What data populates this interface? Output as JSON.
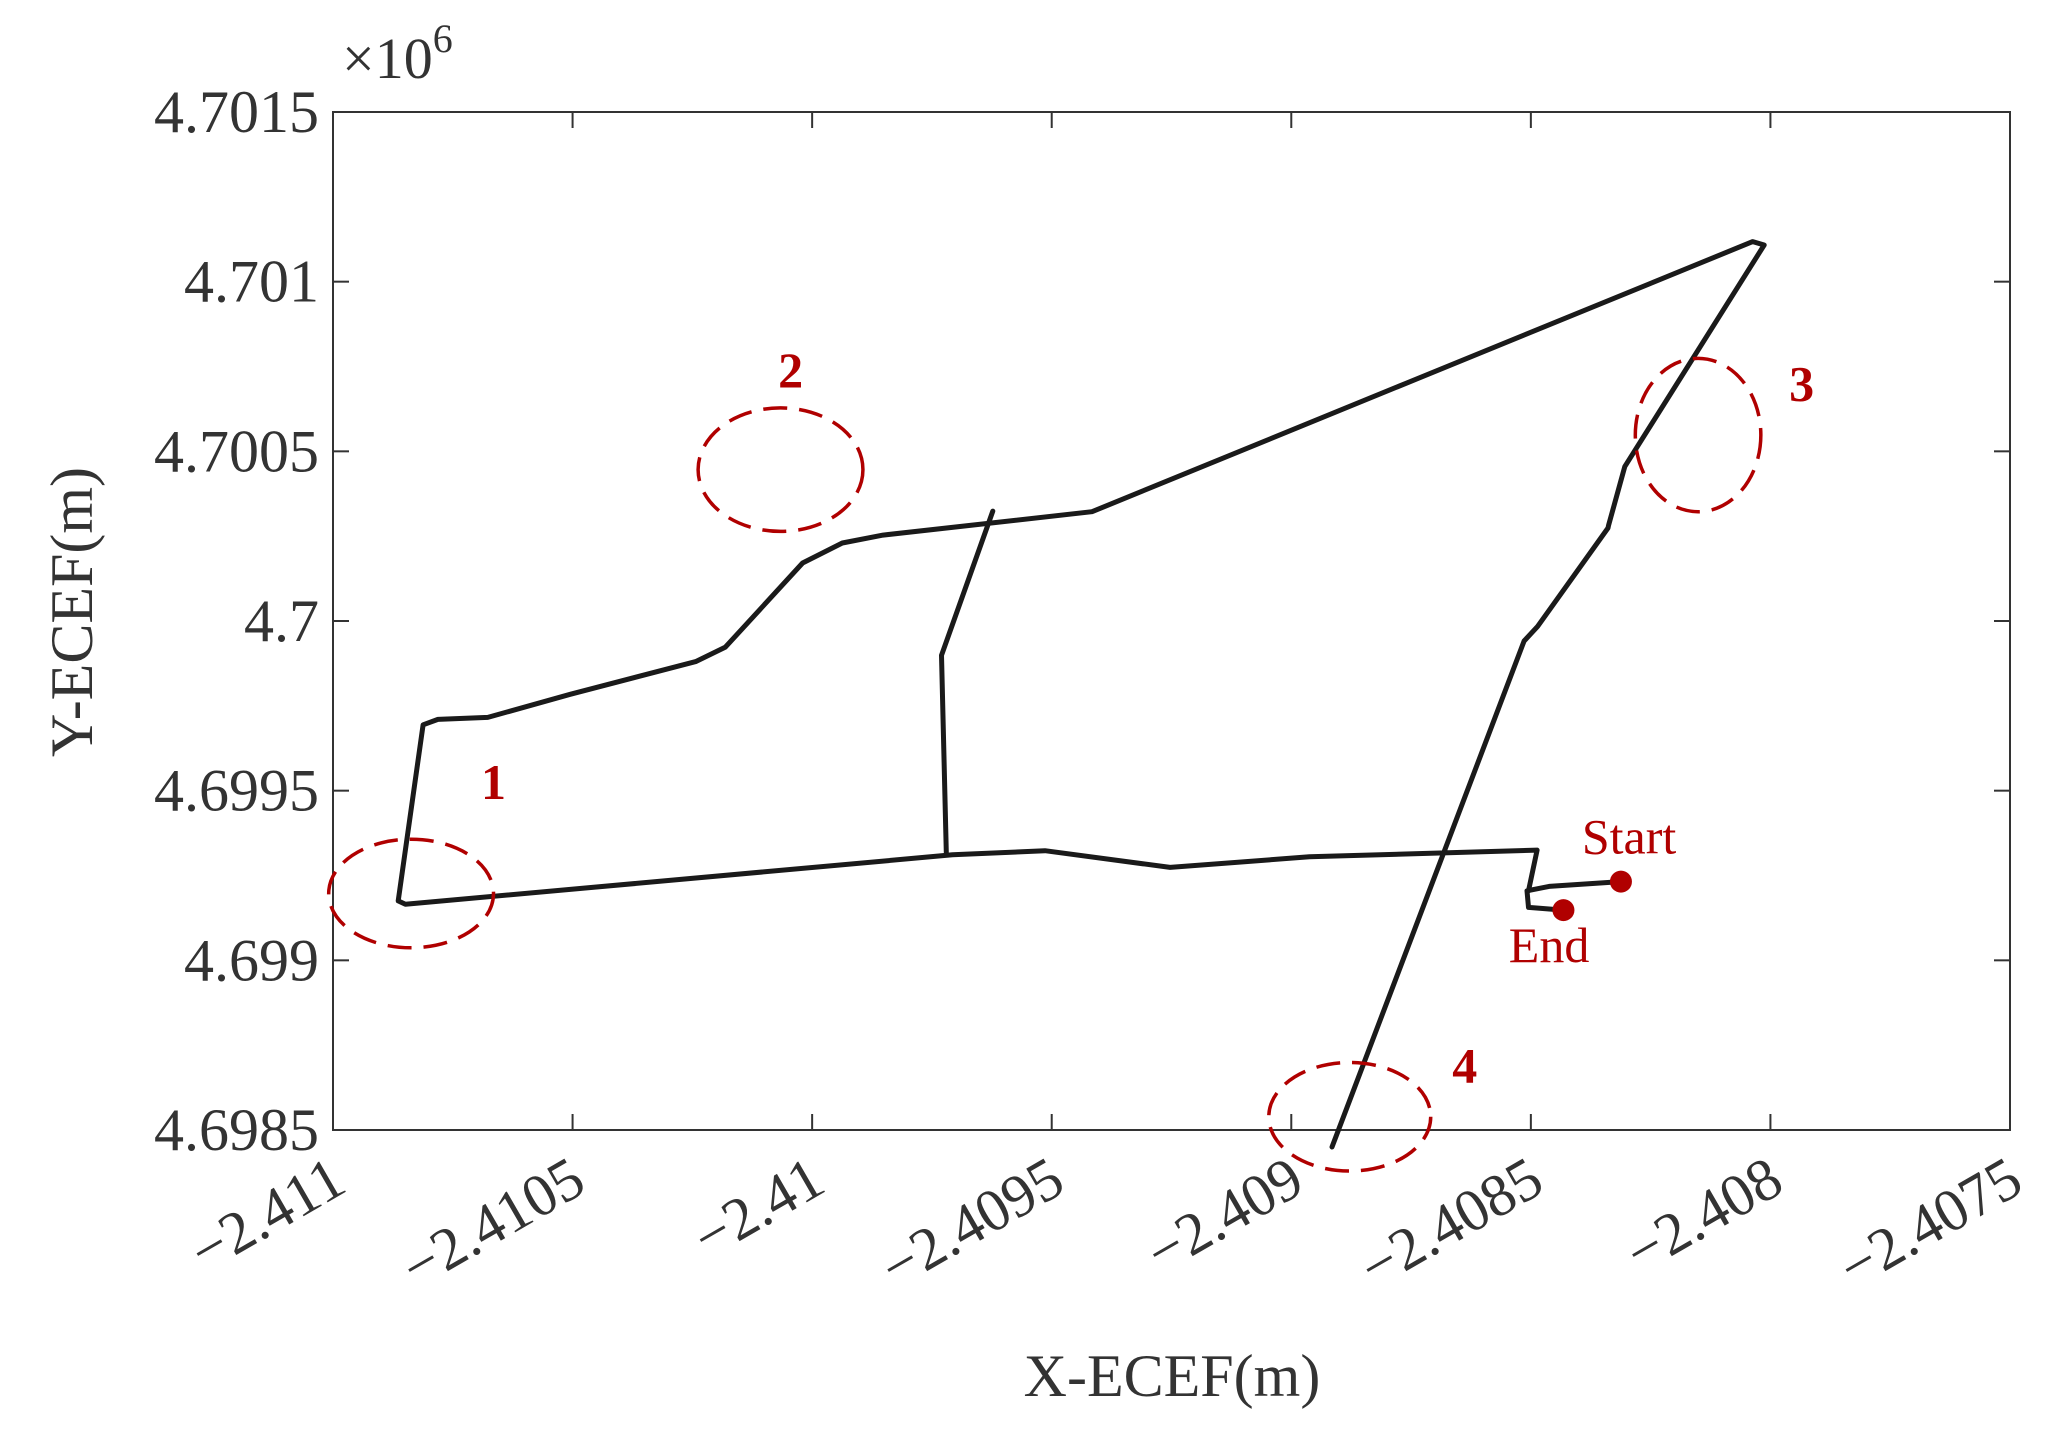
{
  "chart_data": {
    "type": "line",
    "title": "",
    "xlabel": "X-ECEF(m)",
    "ylabel": "Y-ECEF(m)",
    "y_exponent_label": "×10",
    "y_exponent_power": "6",
    "xlim": [
      -2.411,
      -2.4075
    ],
    "ylim": [
      4.6985,
      4.7015
    ],
    "scale": 1000000,
    "xticks": [
      "−2.411",
      "−2.4105",
      "−2.41",
      "−2.4095",
      "−2.409",
      "−2.4085",
      "−2.408",
      "−2.4075"
    ],
    "xtick_values": [
      -2.411,
      -2.4105,
      -2.41,
      -2.4095,
      -2.409,
      -2.4085,
      -2.408,
      -2.4075
    ],
    "yticks": [
      "4.6985",
      "4.699",
      "4.6995",
      "4.7",
      "4.7005",
      "4.701",
      "4.7015"
    ],
    "ytick_values": [
      4.6985,
      4.699,
      4.6995,
      4.7,
      4.7005,
      4.701,
      4.7015
    ],
    "grid": false,
    "line_color": "#1a1a1a",
    "annotation_color": "#b00000",
    "series": [
      {
        "points": [
          [
            -2.408312,
            4.699232
          ],
          [
            -2.408462,
            4.699218
          ],
          [
            -2.408508,
            4.699205
          ],
          [
            -2.408505,
            4.699156
          ],
          [
            -2.408432,
            4.699148
          ]
        ]
      },
      {
        "points": [
          [
            -2.408505,
            4.699205
          ],
          [
            -2.408487,
            4.699325
          ],
          [
            -2.408962,
            4.699305
          ],
          [
            -2.409253,
            4.699274
          ],
          [
            -2.409514,
            4.699323
          ],
          [
            -2.409707,
            4.699311
          ],
          [
            -2.410849,
            4.699165
          ],
          [
            -2.410864,
            4.699175
          ],
          [
            -2.410812,
            4.699694
          ],
          [
            -2.410781,
            4.69971
          ],
          [
            -2.410677,
            4.699716
          ],
          [
            -2.410505,
            4.699784
          ],
          [
            -2.410242,
            4.699881
          ],
          [
            -2.410181,
            4.699923
          ],
          [
            -2.41002,
            4.700171
          ],
          [
            -2.409937,
            4.70023
          ],
          [
            -2.409852,
            4.700253
          ],
          [
            -2.409416,
            4.700322
          ],
          [
            -2.408037,
            4.701118
          ],
          [
            -2.408013,
            4.701108
          ],
          [
            -2.408304,
            4.700455
          ],
          [
            -2.408338,
            4.700281
          ],
          [
            -2.408339,
            4.700274
          ],
          [
            -2.408486,
            4.699984
          ],
          [
            -2.408514,
            4.699941
          ],
          [
            -2.408915,
            4.69845
          ]
        ]
      },
      {
        "points": [
          [
            -2.40972,
            4.699318
          ],
          [
            -2.40973,
            4.699899
          ],
          [
            -2.409623,
            4.700324
          ]
        ]
      }
    ],
    "annotations": [
      {
        "label": "1",
        "ellipse": {
          "cx": -2.410837,
          "cy": 4.699197,
          "rx": 0.000172,
          "ry": 0.00016
        },
        "label_pos": [
          -2.410665,
          4.699475
        ]
      },
      {
        "label": "2",
        "ellipse": {
          "cx": -2.410066,
          "cy": 4.700446,
          "rx": 0.000172,
          "ry": 0.000182
        },
        "label_pos": [
          -2.410045,
          4.70069
        ]
      },
      {
        "label": "3",
        "ellipse": {
          "cx": -2.408151,
          "cy": 4.700548,
          "rx": 0.000131,
          "ry": 0.000226
        },
        "label_pos": [
          -2.407935,
          4.70065
        ]
      },
      {
        "label": "4",
        "ellipse": {
          "cx": -2.408878,
          "cy": 4.698539,
          "rx": 0.000169,
          "ry": 0.00016
        },
        "label_pos": [
          -2.408638,
          4.69864
        ]
      }
    ],
    "markers": [
      {
        "label": "Start",
        "x": -2.408312,
        "y": 4.699232,
        "label_pos": [
          -2.408295,
          4.699315
        ]
      },
      {
        "label": "End",
        "x": -2.408432,
        "y": 4.699148,
        "label_pos": [
          -2.408462,
          4.698995
        ]
      }
    ]
  }
}
